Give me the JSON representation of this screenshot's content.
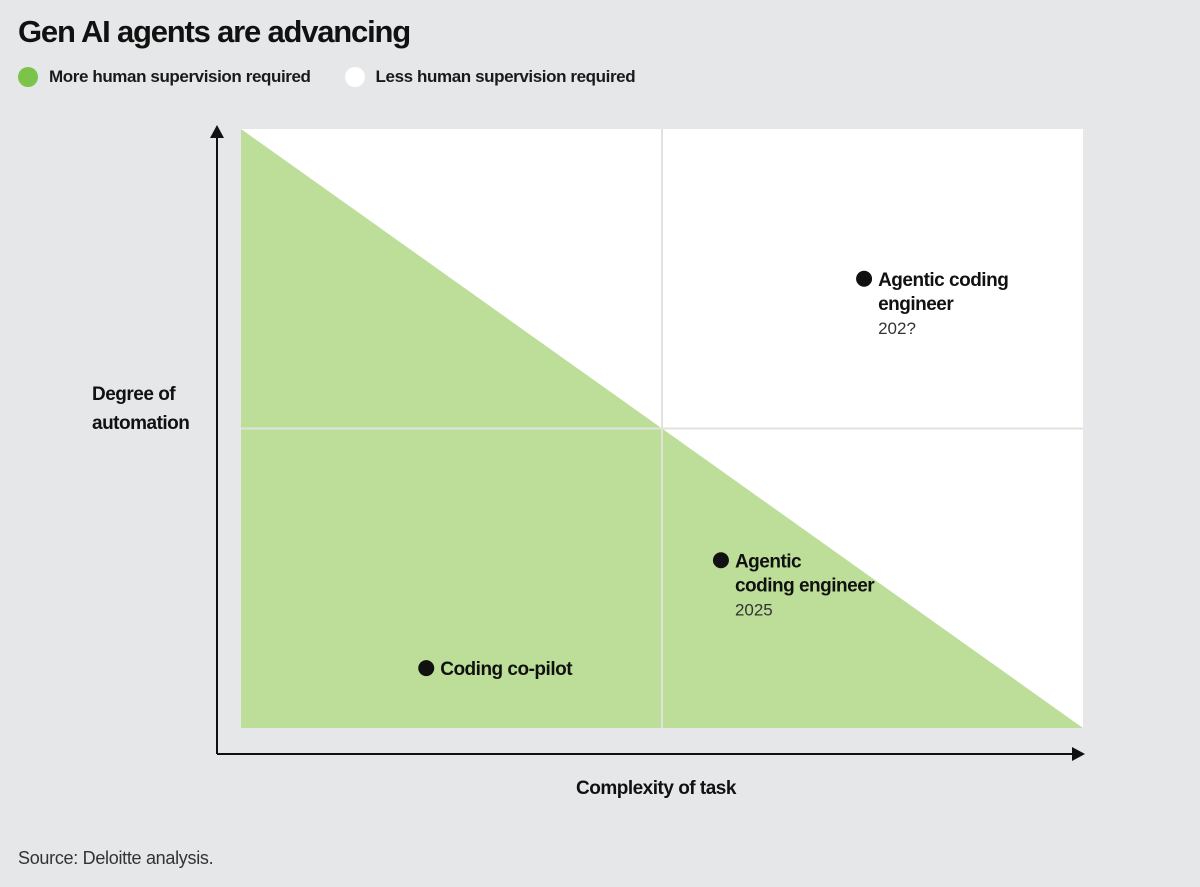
{
  "colors": {
    "background": "#e6e7e8",
    "plot_area": "#ffffff",
    "more_supervision": "#bcde98",
    "legend_green": "#7cc449",
    "gridline": "#dfe3dc",
    "axis": "#111111",
    "point": "#111111"
  },
  "chart_data": {
    "type": "scatter",
    "title": "Gen AI agents are advancing",
    "xlabel": "Complexity of task",
    "ylabel": "Degree of automation",
    "xlim": [
      0,
      1
    ],
    "ylim": [
      0,
      1
    ],
    "grid": true,
    "legend_placement": "top-left",
    "legend": [
      {
        "label": "More human supervision required",
        "color": "#7cc449"
      },
      {
        "label": "Less human supervision required",
        "color": "#ffffff"
      }
    ],
    "regions": [
      {
        "name": "More human supervision required",
        "polygon": [
          [
            0,
            0
          ],
          [
            0,
            1
          ],
          [
            1,
            0
          ]
        ],
        "color": "#bcde98"
      }
    ],
    "points": [
      {
        "label": "Coding co-pilot",
        "year": "",
        "x": 0.22,
        "y": 0.1
      },
      {
        "label": "Agentic coding engineer",
        "label_lines": [
          "Agentic",
          "coding engineer"
        ],
        "year": "2025",
        "x": 0.57,
        "y": 0.28
      },
      {
        "label": "Agentic coding engineer",
        "label_lines": [
          "Agentic coding",
          "engineer"
        ],
        "year": "202?",
        "x": 0.74,
        "y": 0.75
      }
    ]
  },
  "source": "Source: Deloitte analysis."
}
